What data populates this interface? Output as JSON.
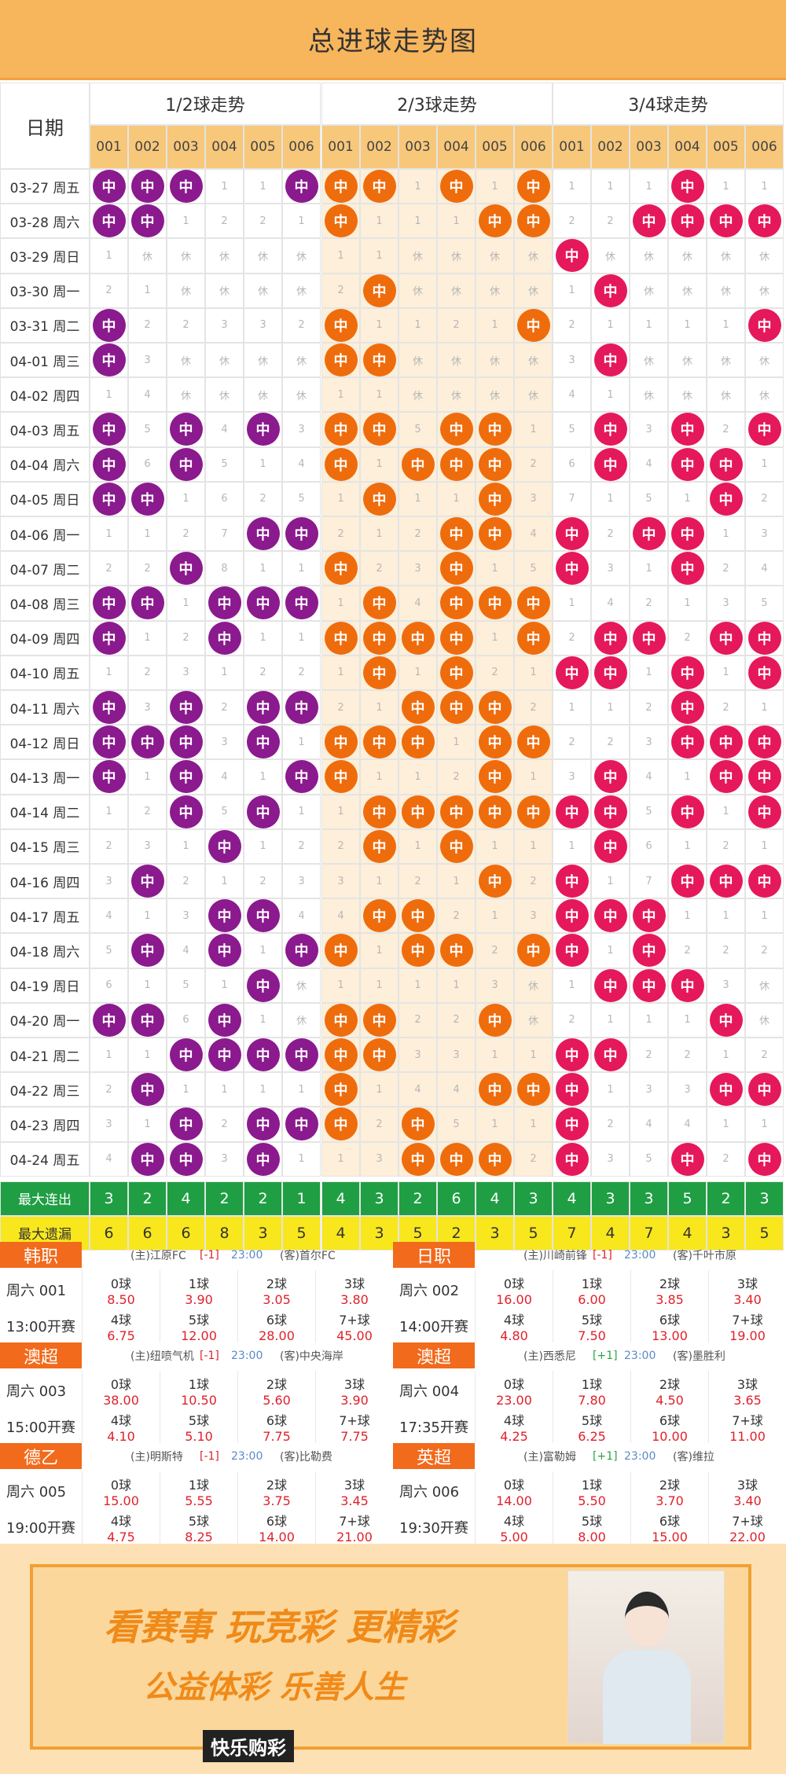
{
  "page": {
    "title": "总进球走势图"
  },
  "table": {
    "date_header": "日期",
    "groups": [
      "1/2球走势",
      "2/3球走势",
      "3/4球走势"
    ],
    "col_numbers": [
      "001",
      "002",
      "003",
      "004",
      "005",
      "006"
    ],
    "hit_label": "中",
    "rows": [
      {
        "date": "03-27 周五",
        "g": [
          [
            "H",
            "H",
            "H",
            "1",
            "1",
            "H"
          ],
          [
            "H",
            "H",
            "1",
            "H",
            "1",
            "H"
          ],
          [
            "1",
            "1",
            "1",
            "H",
            "1",
            "1"
          ]
        ]
      },
      {
        "date": "03-28 周六",
        "g": [
          [
            "H",
            "H",
            "1",
            "2",
            "2",
            "1"
          ],
          [
            "H",
            "1",
            "1",
            "1",
            "H",
            "H"
          ],
          [
            "2",
            "2",
            "H",
            "H",
            "H",
            "H"
          ]
        ]
      },
      {
        "date": "03-29 周日",
        "g": [
          [
            "1",
            "休",
            "休",
            "休",
            "休",
            "休"
          ],
          [
            "1",
            "1",
            "休",
            "休",
            "休",
            "休"
          ],
          [
            "H",
            "休",
            "休",
            "休",
            "休",
            "休"
          ]
        ]
      },
      {
        "date": "03-30 周一",
        "g": [
          [
            "2",
            "1",
            "休",
            "休",
            "休",
            "休"
          ],
          [
            "2",
            "H",
            "休",
            "休",
            "休",
            "休"
          ],
          [
            "1",
            "H",
            "休",
            "休",
            "休",
            "休"
          ]
        ]
      },
      {
        "date": "03-31 周二",
        "g": [
          [
            "H",
            "2",
            "2",
            "3",
            "3",
            "2"
          ],
          [
            "H",
            "1",
            "1",
            "2",
            "1",
            "H"
          ],
          [
            "2",
            "1",
            "1",
            "1",
            "1",
            "H"
          ]
        ]
      },
      {
        "date": "04-01 周三",
        "g": [
          [
            "H",
            "3",
            "休",
            "休",
            "休",
            "休"
          ],
          [
            "H",
            "H",
            "休",
            "休",
            "休",
            "休"
          ],
          [
            "3",
            "H",
            "休",
            "休",
            "休",
            "休"
          ]
        ]
      },
      {
        "date": "04-02 周四",
        "g": [
          [
            "1",
            "4",
            "休",
            "休",
            "休",
            "休"
          ],
          [
            "1",
            "1",
            "休",
            "休",
            "休",
            "休"
          ],
          [
            "4",
            "1",
            "休",
            "休",
            "休",
            "休"
          ]
        ]
      },
      {
        "date": "04-03 周五",
        "g": [
          [
            "H",
            "5",
            "H",
            "4",
            "H",
            "3"
          ],
          [
            "H",
            "H",
            "5",
            "H",
            "H",
            "1"
          ],
          [
            "5",
            "H",
            "3",
            "H",
            "2",
            "H"
          ]
        ]
      },
      {
        "date": "04-04 周六",
        "g": [
          [
            "H",
            "6",
            "H",
            "5",
            "1",
            "4"
          ],
          [
            "H",
            "1",
            "H",
            "H",
            "H",
            "2"
          ],
          [
            "6",
            "H",
            "4",
            "H",
            "H",
            "1"
          ]
        ]
      },
      {
        "date": "04-05 周日",
        "g": [
          [
            "H",
            "H",
            "1",
            "6",
            "2",
            "5"
          ],
          [
            "1",
            "H",
            "1",
            "1",
            "H",
            "3"
          ],
          [
            "7",
            "1",
            "5",
            "1",
            "H",
            "2"
          ]
        ]
      },
      {
        "date": "04-06 周一",
        "g": [
          [
            "1",
            "1",
            "2",
            "7",
            "H",
            "H"
          ],
          [
            "2",
            "1",
            "2",
            "H",
            "H",
            "4"
          ],
          [
            "H",
            "2",
            "H",
            "H",
            "1",
            "3"
          ]
        ]
      },
      {
        "date": "04-07 周二",
        "g": [
          [
            "2",
            "2",
            "H",
            "8",
            "1",
            "1"
          ],
          [
            "H",
            "2",
            "3",
            "H",
            "1",
            "5"
          ],
          [
            "H",
            "3",
            "1",
            "H",
            "2",
            "4"
          ]
        ]
      },
      {
        "date": "04-08 周三",
        "g": [
          [
            "H",
            "H",
            "1",
            "H",
            "H",
            "H"
          ],
          [
            "1",
            "H",
            "4",
            "H",
            "H",
            "H"
          ],
          [
            "1",
            "4",
            "2",
            "1",
            "3",
            "5"
          ]
        ]
      },
      {
        "date": "04-09 周四",
        "g": [
          [
            "H",
            "1",
            "2",
            "H",
            "1",
            "1"
          ],
          [
            "H",
            "H",
            "H",
            "H",
            "1",
            "H"
          ],
          [
            "2",
            "H",
            "H",
            "2",
            "H",
            "H"
          ]
        ]
      },
      {
        "date": "04-10 周五",
        "g": [
          [
            "1",
            "2",
            "3",
            "1",
            "2",
            "2"
          ],
          [
            "1",
            "H",
            "1",
            "H",
            "2",
            "1"
          ],
          [
            "H",
            "H",
            "1",
            "H",
            "1",
            "H"
          ]
        ]
      },
      {
        "date": "04-11 周六",
        "g": [
          [
            "H",
            "3",
            "H",
            "2",
            "H",
            "H"
          ],
          [
            "2",
            "1",
            "H",
            "H",
            "H",
            "2"
          ],
          [
            "1",
            "1",
            "2",
            "H",
            "2",
            "1"
          ]
        ]
      },
      {
        "date": "04-12 周日",
        "g": [
          [
            "H",
            "H",
            "H",
            "3",
            "H",
            "1"
          ],
          [
            "H",
            "H",
            "H",
            "1",
            "H",
            "H"
          ],
          [
            "2",
            "2",
            "3",
            "H",
            "H",
            "H"
          ]
        ]
      },
      {
        "date": "04-13 周一",
        "g": [
          [
            "H",
            "1",
            "H",
            "4",
            "1",
            "H"
          ],
          [
            "H",
            "1",
            "1",
            "2",
            "H",
            "1"
          ],
          [
            "3",
            "H",
            "4",
            "1",
            "H",
            "H"
          ]
        ]
      },
      {
        "date": "04-14 周二",
        "g": [
          [
            "1",
            "2",
            "H",
            "5",
            "H",
            "1"
          ],
          [
            "1",
            "H",
            "H",
            "H",
            "H",
            "H"
          ],
          [
            "H",
            "H",
            "5",
            "H",
            "1",
            "H"
          ]
        ]
      },
      {
        "date": "04-15 周三",
        "g": [
          [
            "2",
            "3",
            "1",
            "H",
            "1",
            "2"
          ],
          [
            "2",
            "H",
            "1",
            "H",
            "1",
            "1"
          ],
          [
            "1",
            "H",
            "6",
            "1",
            "2",
            "1"
          ]
        ]
      },
      {
        "date": "04-16 周四",
        "g": [
          [
            "3",
            "H",
            "2",
            "1",
            "2",
            "3"
          ],
          [
            "3",
            "1",
            "2",
            "1",
            "H",
            "2"
          ],
          [
            "H",
            "1",
            "7",
            "H",
            "H",
            "H"
          ]
        ]
      },
      {
        "date": "04-17 周五",
        "g": [
          [
            "4",
            "1",
            "3",
            "H",
            "H",
            "4"
          ],
          [
            "4",
            "H",
            "H",
            "2",
            "1",
            "3"
          ],
          [
            "H",
            "H",
            "H",
            "1",
            "1",
            "1"
          ]
        ]
      },
      {
        "date": "04-18 周六",
        "g": [
          [
            "5",
            "H",
            "4",
            "H",
            "1",
            "H"
          ],
          [
            "H",
            "1",
            "H",
            "H",
            "2",
            "H"
          ],
          [
            "H",
            "1",
            "H",
            "2",
            "2",
            "2"
          ]
        ]
      },
      {
        "date": "04-19 周日",
        "g": [
          [
            "6",
            "1",
            "5",
            "1",
            "H",
            "休"
          ],
          [
            "1",
            "1",
            "1",
            "1",
            "3",
            "休"
          ],
          [
            "1",
            "H",
            "H",
            "H",
            "3",
            "休"
          ]
        ]
      },
      {
        "date": "04-20 周一",
        "g": [
          [
            "H",
            "H",
            "6",
            "H",
            "1",
            "休"
          ],
          [
            "H",
            "H",
            "2",
            "2",
            "H",
            "休"
          ],
          [
            "2",
            "1",
            "1",
            "1",
            "H",
            "休"
          ]
        ]
      },
      {
        "date": "04-21 周二",
        "g": [
          [
            "1",
            "1",
            "H",
            "H",
            "H",
            "H"
          ],
          [
            "H",
            "H",
            "3",
            "3",
            "1",
            "1"
          ],
          [
            "H",
            "H",
            "2",
            "2",
            "1",
            "2"
          ]
        ]
      },
      {
        "date": "04-22 周三",
        "g": [
          [
            "2",
            "H",
            "1",
            "1",
            "1",
            "1"
          ],
          [
            "H",
            "1",
            "4",
            "4",
            "H",
            "H"
          ],
          [
            "H",
            "1",
            "3",
            "3",
            "H",
            "H"
          ]
        ]
      },
      {
        "date": "04-23 周四",
        "g": [
          [
            "3",
            "1",
            "H",
            "2",
            "H",
            "H"
          ],
          [
            "H",
            "2",
            "H",
            "5",
            "1",
            "1"
          ],
          [
            "H",
            "2",
            "4",
            "4",
            "1",
            "1"
          ]
        ]
      },
      {
        "date": "04-24 周五",
        "g": [
          [
            "4",
            "H",
            "H",
            "3",
            "H",
            "1"
          ],
          [
            "1",
            "3",
            "H",
            "H",
            "H",
            "2"
          ],
          [
            "H",
            "3",
            "5",
            "H",
            "2",
            "H"
          ]
        ]
      }
    ],
    "max_streak_label": "最大连出",
    "max_streak": [
      3,
      2,
      4,
      2,
      2,
      1,
      4,
      3,
      2,
      6,
      4,
      3,
      4,
      3,
      3,
      5,
      2,
      3
    ],
    "max_miss_label": "最大遗漏",
    "max_miss": [
      6,
      6,
      6,
      8,
      3,
      5,
      4,
      3,
      5,
      2,
      3,
      5,
      7,
      4,
      7,
      4,
      3,
      5
    ]
  },
  "colors": {
    "group1": "#8b1a8e",
    "group2": "#ef6c0c",
    "group3": "#e5185b",
    "streak_bg": "#1f9e43",
    "miss_bg": "#f8e71c",
    "hdr_bg": "#f7c77a",
    "mid_bg": "#fdefd9"
  },
  "matches": [
    {
      "league": "韩职",
      "home": "(主)江原FC",
      "handicap": "[-1]",
      "time": "23:00",
      "away": "(客)首尔FC",
      "code": "周六 001",
      "kickoff": "13:00开赛",
      "odds": [
        [
          "0球",
          "8.50"
        ],
        [
          "1球",
          "3.90"
        ],
        [
          "2球",
          "3.05"
        ],
        [
          "3球",
          "3.80"
        ],
        [
          "4球",
          "6.75"
        ],
        [
          "5球",
          "12.00"
        ],
        [
          "6球",
          "28.00"
        ],
        [
          "7+球",
          "45.00"
        ]
      ]
    },
    {
      "league": "日职",
      "home": "(主)川崎前锋",
      "handicap": "[-1]",
      "time": "23:00",
      "away": "(客)千叶市原",
      "code": "周六 002",
      "kickoff": "14:00开赛",
      "odds": [
        [
          "0球",
          "16.00"
        ],
        [
          "1球",
          "6.00"
        ],
        [
          "2球",
          "3.85"
        ],
        [
          "3球",
          "3.40"
        ],
        [
          "4球",
          "4.80"
        ],
        [
          "5球",
          "7.50"
        ],
        [
          "6球",
          "13.00"
        ],
        [
          "7+球",
          "19.00"
        ]
      ]
    },
    {
      "league": "澳超",
      "home": "(主)纽喷气机",
      "handicap": "[-1]",
      "time": "23:00",
      "away": "(客)中央海岸",
      "code": "周六 003",
      "kickoff": "15:00开赛",
      "odds": [
        [
          "0球",
          "38.00"
        ],
        [
          "1球",
          "10.50"
        ],
        [
          "2球",
          "5.60"
        ],
        [
          "3球",
          "3.90"
        ],
        [
          "4球",
          "4.10"
        ],
        [
          "5球",
          "5.10"
        ],
        [
          "6球",
          "7.75"
        ],
        [
          "7+球",
          "7.75"
        ]
      ]
    },
    {
      "league": "澳超",
      "home": "(主)西悉尼",
      "handicap": "[+1]",
      "time": "23:00",
      "away": "(客)墨胜利",
      "code": "周六 004",
      "kickoff": "17:35开赛",
      "odds": [
        [
          "0球",
          "23.00"
        ],
        [
          "1球",
          "7.80"
        ],
        [
          "2球",
          "4.50"
        ],
        [
          "3球",
          "3.65"
        ],
        [
          "4球",
          "4.25"
        ],
        [
          "5球",
          "6.25"
        ],
        [
          "6球",
          "10.00"
        ],
        [
          "7+球",
          "11.00"
        ]
      ]
    },
    {
      "league": "德乙",
      "home": "(主)明斯特",
      "handicap": "[-1]",
      "time": "23:00",
      "away": "(客)比勒费",
      "code": "周六 005",
      "kickoff": "19:00开赛",
      "odds": [
        [
          "0球",
          "15.00"
        ],
        [
          "1球",
          "5.55"
        ],
        [
          "2球",
          "3.75"
        ],
        [
          "3球",
          "3.45"
        ],
        [
          "4球",
          "4.75"
        ],
        [
          "5球",
          "8.25"
        ],
        [
          "6球",
          "14.00"
        ],
        [
          "7+球",
          "21.00"
        ]
      ]
    },
    {
      "league": "英超",
      "home": "(主)富勒姆",
      "handicap": "[+1]",
      "time": "23:00",
      "away": "(客)维拉",
      "code": "周六 006",
      "kickoff": "19:30开赛",
      "odds": [
        [
          "0球",
          "14.00"
        ],
        [
          "1球",
          "5.50"
        ],
        [
          "2球",
          "3.70"
        ],
        [
          "3球",
          "3.40"
        ],
        [
          "4球",
          "5.00"
        ],
        [
          "5球",
          "8.00"
        ],
        [
          "6球",
          "15.00"
        ],
        [
          "7+球",
          "22.00"
        ]
      ]
    }
  ],
  "banner": {
    "line1": "看赛事 玩竞彩 更精彩",
    "line2": "公益体彩 乐善人生",
    "brand": "快乐购彩"
  }
}
